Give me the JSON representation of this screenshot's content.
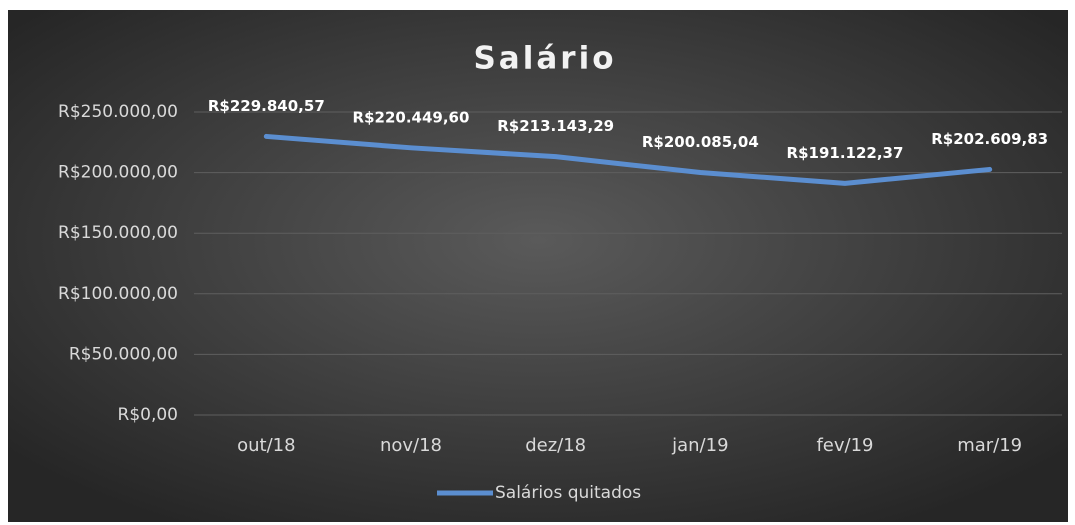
{
  "chart_data": {
    "type": "line",
    "title": "Salário",
    "categories": [
      "out/18",
      "nov/18",
      "dez/18",
      "jan/19",
      "fev/19",
      "mar/19"
    ],
    "series": [
      {
        "name": "Salários quitados",
        "color": "#5b8ed0",
        "values": [
          229840.57,
          220449.6,
          213143.29,
          200085.04,
          191122.37,
          202609.83
        ],
        "value_labels": [
          "R$229.840,57",
          "R$220.449,60",
          "R$213.143,29",
          "R$200.085,04",
          "R$191.122,37",
          "R$202.609,83"
        ]
      }
    ],
    "ylim": [
      0,
      250000
    ],
    "yticks": [
      {
        "value": 0,
        "label": "R$0,00"
      },
      {
        "value": 50000,
        "label": "R$50.000,00"
      },
      {
        "value": 100000,
        "label": "R$100.000,00"
      },
      {
        "value": 150000,
        "label": "R$150.000,00"
      },
      {
        "value": 200000,
        "label": "R$200.000,00"
      },
      {
        "value": 250000,
        "label": "R$250.000,00"
      }
    ],
    "grid": true,
    "legend": "bottom"
  }
}
